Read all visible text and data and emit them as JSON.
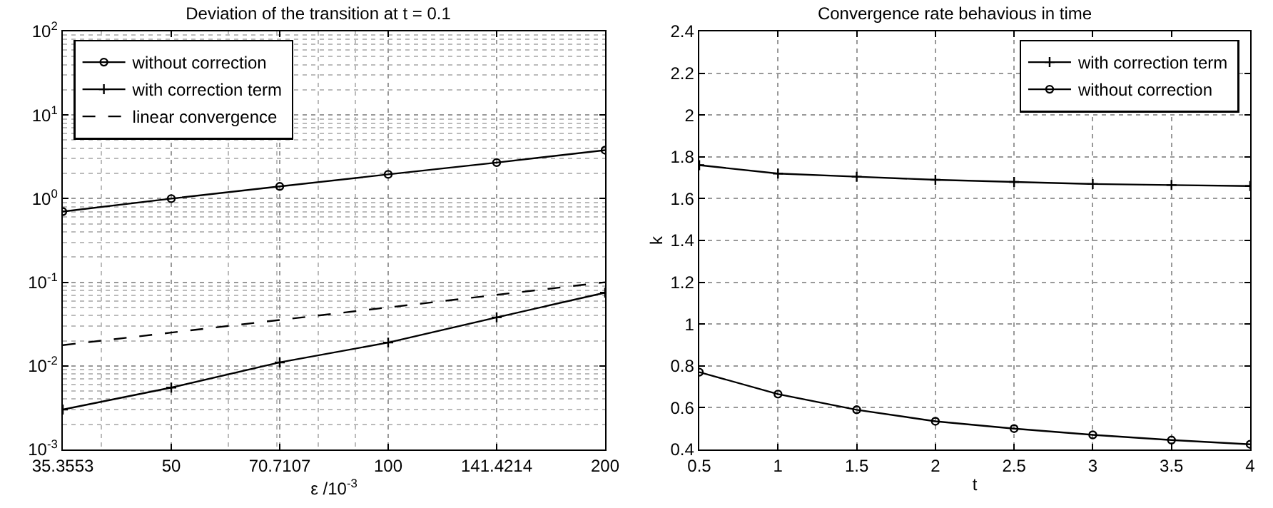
{
  "chart_data": [
    {
      "type": "line",
      "title": "Deviation of the transition at t = 0.1",
      "xlabel": "ε /10$^{-3}$",
      "x": [
        35.3553,
        50,
        70.7107,
        100,
        141.4214,
        200
      ],
      "series": [
        {
          "name": "without correction",
          "color": "#000000",
          "marker": "circle",
          "line_style": "solid",
          "values": [
            0.7,
            1.0,
            1.4,
            1.95,
            2.7,
            3.8
          ]
        },
        {
          "name": "with correction term",
          "color": "#000000",
          "marker": "cross",
          "line_style": "solid",
          "values": [
            0.003,
            0.0055,
            0.011,
            0.019,
            0.038,
            0.075
          ]
        },
        {
          "name": "linear convergence",
          "color": "#000000",
          "marker": "none",
          "line_style": "dashed",
          "values": [
            0.0177,
            0.025,
            0.0354,
            0.05,
            0.0707,
            0.1
          ]
        }
      ],
      "log": "xy",
      "xlim": [
        35.3553,
        200
      ],
      "xticks": [
        35.3553,
        50,
        70.7107,
        100,
        141.4214,
        200
      ],
      "ylim": [
        0.001,
        100
      ],
      "yticks": [
        {
          "value": 0.001,
          "label": "10$^{-3}$"
        },
        {
          "value": 0.01,
          "label": "10$^{-2}$"
        },
        {
          "value": 0.1,
          "label": "10$^{-1}$"
        },
        {
          "value": 1,
          "label": "10$^{0}$"
        },
        {
          "value": 10,
          "label": "10$^{1}$"
        },
        {
          "value": 100,
          "label": "10$^{2}$"
        }
      ],
      "grid": true,
      "legend": "top left"
    },
    {
      "type": "line",
      "title": "Convergence rate behavious in time",
      "xlabel": "t",
      "ylabel": "k",
      "x": [
        0.5,
        1,
        1.5,
        2,
        2.5,
        3,
        3.5,
        4
      ],
      "series": [
        {
          "name": "with correction term",
          "color": "#000000",
          "marker": "cross",
          "line_style": "solid",
          "values": [
            1.76,
            1.72,
            1.705,
            1.69,
            1.68,
            1.67,
            1.665,
            1.66
          ]
        },
        {
          "name": "without correction",
          "color": "#000000",
          "marker": "circle",
          "line_style": "solid",
          "values": [
            0.77,
            0.665,
            0.59,
            0.535,
            0.5,
            0.47,
            0.445,
            0.425
          ]
        }
      ],
      "xlim": [
        0.5,
        4
      ],
      "xticks": [
        0.5,
        1,
        1.5,
        2,
        2.5,
        3,
        3.5,
        4
      ],
      "ylim": [
        0.4,
        2.4
      ],
      "yticks": [
        0.4,
        0.6,
        0.8,
        1,
        1.2,
        1.4,
        1.6,
        1.8,
        2,
        2.2,
        2.4
      ],
      "grid": true,
      "legend": "top right"
    }
  ]
}
